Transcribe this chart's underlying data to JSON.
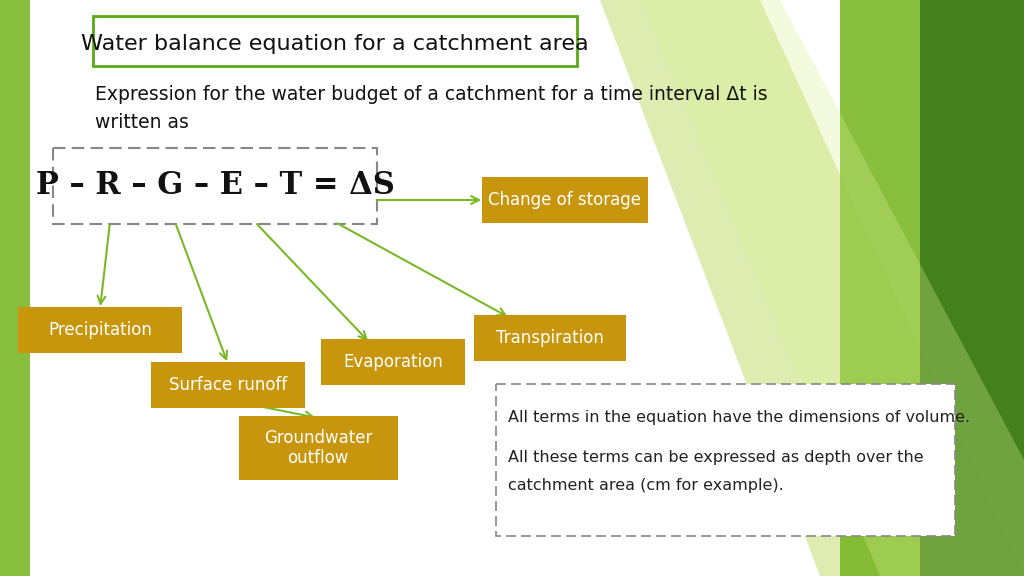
{
  "title": "Water balance equation for a catchment area",
  "subtitle_line1": "Expression for the water budget of a catchment for a time interval Δt is",
  "subtitle_line2": "written as",
  "equation": "P – R – G – E – T = ΔS",
  "bg_color": "#ffffff",
  "title_box_color": "#5aaa14",
  "equation_color": "#111111",
  "orange_box_color": "#c8960c",
  "orange_text_color": "#ffffff",
  "arrow_color": "#7ab828",
  "dashed_box_color": "#888888",
  "info_text_line1": "All terms in the equation have the dimensions of volume.",
  "info_text_line2": "All these terms can be expressed as depth over the",
  "info_text_line3": "catchment area (cm for example).",
  "green_light": "#b8d96e",
  "green_mid": "#7ab828",
  "green_dark": "#3a7a10",
  "green_darker": "#2a5a08"
}
